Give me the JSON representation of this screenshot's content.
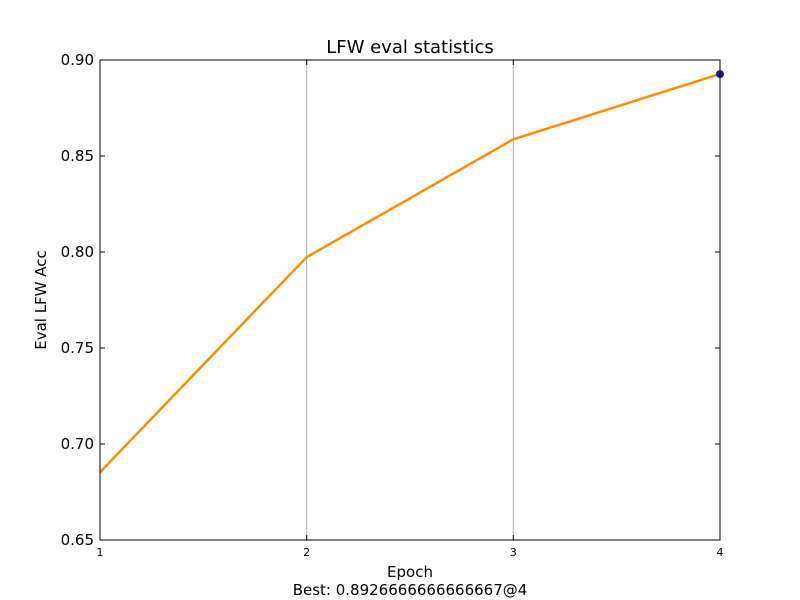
{
  "chart_data": {
    "type": "line",
    "title": "LFW eval statistics",
    "xlabel": "Epoch",
    "ylabel": "Eval LFW Acc",
    "footer": "Best: 0.8926666666666667@4",
    "x": [
      1,
      2,
      3,
      4
    ],
    "series": [
      {
        "values": [
          0.6853,
          0.7973,
          0.8587,
          0.8927
        ],
        "color": "#ff8c00"
      }
    ],
    "best_point": {
      "x": 4,
      "y": 0.8926666666666667,
      "color": "#1c1c8c"
    },
    "xlim": [
      1,
      4
    ],
    "ylim": [
      0.65,
      0.9
    ],
    "xticks": [
      1,
      2,
      3,
      4
    ],
    "xtick_labels": [
      "1",
      "2",
      "3",
      "4"
    ],
    "yticks": [
      0.65,
      0.7,
      0.75,
      0.8,
      0.85,
      0.9
    ],
    "ytick_labels": [
      "0.65",
      "0.70",
      "0.75",
      "0.80",
      "0.85",
      "0.90"
    ],
    "grid": "vertical"
  }
}
